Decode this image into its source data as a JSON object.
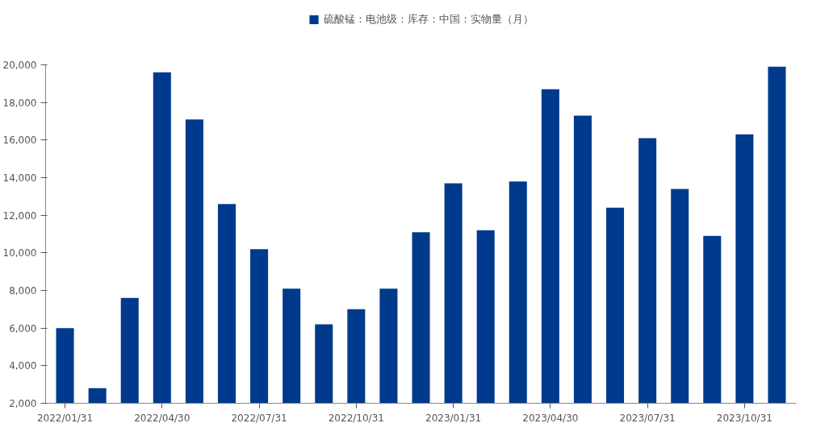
{
  "chart_data": {
    "type": "bar",
    "categories": [
      "2022/01/31",
      null,
      null,
      "2022/04/30",
      null,
      null,
      "2022/07/31",
      null,
      null,
      "2022/10/31",
      null,
      null,
      "2023/01/31",
      null,
      null,
      "2023/04/30",
      null,
      null,
      "2023/07/31",
      null,
      null,
      "2023/10/31",
      null
    ],
    "series": [
      {
        "name": "硫酸锰：电池级：库存：中国：实物量（月）",
        "color": "#003a8c",
        "values": [
          6000,
          2800,
          7600,
          19600,
          17100,
          12600,
          10200,
          8100,
          6200,
          7000,
          8100,
          11100,
          13700,
          11200,
          13800,
          18700,
          17300,
          12400,
          16100,
          13400,
          10900,
          16300,
          19900
        ]
      }
    ],
    "ylim": [
      2000,
      20000
    ],
    "yticks": [
      {
        "value": 2000,
        "label": "2,000"
      },
      {
        "value": 4000,
        "label": "4,000"
      },
      {
        "value": 6000,
        "label": "6,000"
      },
      {
        "value": 8000,
        "label": "8,000"
      },
      {
        "value": 10000,
        "label": "10,000"
      },
      {
        "value": 12000,
        "label": "12,000"
      },
      {
        "value": 14000,
        "label": "14,000"
      },
      {
        "value": 16000,
        "label": "16,000"
      },
      {
        "value": 18000,
        "label": "18,000"
      },
      {
        "value": 20000,
        "label": "20,000"
      }
    ],
    "legend": "top",
    "grid": false
  }
}
